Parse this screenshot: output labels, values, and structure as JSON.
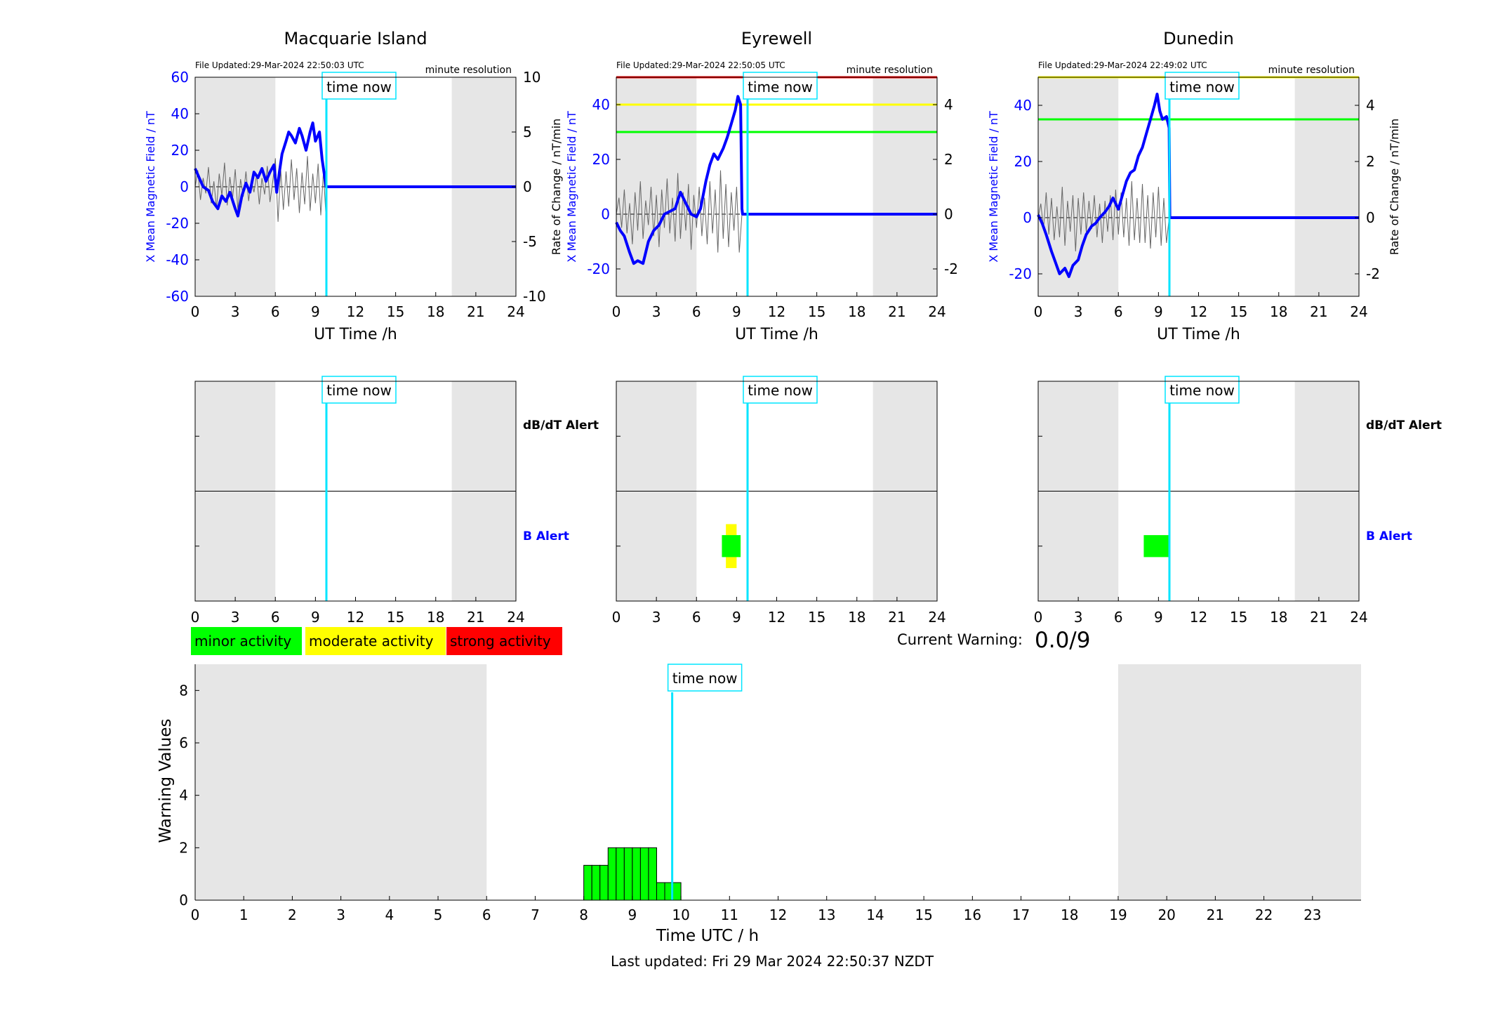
{
  "stations": [
    {
      "name": "Macquarie Island",
      "file_updated": "File Updated:29-Mar-2024 22:50:03 UTC",
      "resolution": "minute resolution",
      "left_ylabel": "X Mean Magnetic Field / nT",
      "right_ylabel": "",
      "left_ylim": [
        -60,
        60
      ],
      "left_yticks": [
        -60,
        -40,
        -20,
        0,
        20,
        40,
        60
      ],
      "right_ylim": [
        -10,
        10
      ],
      "right_yticks": [
        -10,
        -5,
        0,
        5,
        10
      ],
      "thresholds": [],
      "show_alert_labels": true,
      "b_alert_boxes": [],
      "field_trace": [
        [
          0,
          10
        ],
        [
          0.3,
          5
        ],
        [
          0.6,
          0
        ],
        [
          1,
          -2
        ],
        [
          1.3,
          -8
        ],
        [
          1.7,
          -12
        ],
        [
          2,
          -5
        ],
        [
          2.3,
          -8
        ],
        [
          2.6,
          -3
        ],
        [
          3,
          -12
        ],
        [
          3.2,
          -16
        ],
        [
          3.5,
          -5
        ],
        [
          3.8,
          2
        ],
        [
          4.1,
          -3
        ],
        [
          4.4,
          8
        ],
        [
          4.7,
          5
        ],
        [
          5,
          10
        ],
        [
          5.3,
          3
        ],
        [
          5.6,
          8
        ],
        [
          5.9,
          12
        ],
        [
          6.1,
          -3
        ],
        [
          6.3,
          8
        ],
        [
          6.5,
          18
        ],
        [
          6.8,
          25
        ],
        [
          7,
          30
        ],
        [
          7.2,
          28
        ],
        [
          7.5,
          24
        ],
        [
          7.8,
          32
        ],
        [
          8,
          28
        ],
        [
          8.3,
          20
        ],
        [
          8.6,
          30
        ],
        [
          8.8,
          35
        ],
        [
          9,
          25
        ],
        [
          9.3,
          30
        ],
        [
          9.5,
          15
        ],
        [
          9.7,
          5
        ],
        [
          9.8,
          0
        ],
        [
          24,
          0
        ]
      ],
      "rate_trace": [
        [
          0,
          0
        ],
        [
          0.2,
          1.5
        ],
        [
          0.4,
          -1.2
        ],
        [
          0.6,
          0.8
        ],
        [
          0.8,
          -0.6
        ],
        [
          1,
          1.8
        ],
        [
          1.2,
          -1.5
        ],
        [
          1.4,
          0.5
        ],
        [
          1.6,
          -2
        ],
        [
          1.8,
          1.2
        ],
        [
          2,
          -0.8
        ],
        [
          2.2,
          2.2
        ],
        [
          2.4,
          -1.7
        ],
        [
          2.6,
          0.9
        ],
        [
          2.8,
          -1.1
        ],
        [
          3,
          1.6
        ],
        [
          3.2,
          -2.2
        ],
        [
          3.4,
          0.7
        ],
        [
          3.6,
          -0.9
        ],
        [
          3.8,
          1.4
        ],
        [
          4,
          -1.3
        ],
        [
          4.2,
          0.6
        ],
        [
          4.4,
          -0.5
        ],
        [
          4.6,
          1.1
        ],
        [
          4.8,
          -1.6
        ],
        [
          5,
          0.8
        ],
        [
          5.2,
          -0.7
        ],
        [
          5.4,
          1.9
        ],
        [
          5.6,
          -1.4
        ],
        [
          5.8,
          0.4
        ],
        [
          6,
          2.6
        ],
        [
          6.2,
          -3.2
        ],
        [
          6.4,
          1.6
        ],
        [
          6.6,
          -2.1
        ],
        [
          6.8,
          1.4
        ],
        [
          7,
          -1.8
        ],
        [
          7.2,
          2.5
        ],
        [
          7.4,
          -1.2
        ],
        [
          7.6,
          1.7
        ],
        [
          7.8,
          -2.4
        ],
        [
          8,
          1.3
        ],
        [
          8.2,
          -1.6
        ],
        [
          8.4,
          2.8
        ],
        [
          8.6,
          -2.2
        ],
        [
          8.8,
          1.2
        ],
        [
          9,
          -1.5
        ],
        [
          9.2,
          2.1
        ],
        [
          9.4,
          -2.6
        ],
        [
          9.6,
          1.4
        ],
        [
          9.8,
          -3
        ]
      ],
      "night_bands": [
        [
          0,
          6
        ],
        [
          19.2,
          24
        ]
      ]
    },
    {
      "name": "Eyrewell",
      "file_updated": "File Updated:29-Mar-2024 22:50:05 UTC",
      "resolution": "minute resolution",
      "left_ylabel": "X Mean Magnetic Field / nT",
      "right_ylabel": "Rate of Change / nT/min",
      "left_ylim": [
        -30,
        50
      ],
      "left_yticks": [
        -20,
        0,
        20,
        40
      ],
      "right_ylim": [
        -3,
        5
      ],
      "right_yticks": [
        -2,
        0,
        2,
        4
      ],
      "thresholds": [
        {
          "value": 50,
          "color": "#ff0000"
        },
        {
          "value": 40,
          "color": "#ffff00"
        },
        {
          "value": 30,
          "color": "#00ff00"
        }
      ],
      "show_alert_labels": false,
      "b_alert_boxes": [
        {
          "x0": 8.2,
          "x1": 9.0,
          "bottom": 0.3,
          "top": 0.7,
          "color": "#ffff00"
        },
        {
          "x0": 7.9,
          "x1": 9.3,
          "bottom": 0.4,
          "top": 0.6,
          "color": "#00ff00"
        }
      ],
      "field_trace": [
        [
          0,
          -3
        ],
        [
          0.3,
          -6
        ],
        [
          0.6,
          -8
        ],
        [
          1,
          -14
        ],
        [
          1.3,
          -18
        ],
        [
          1.6,
          -17
        ],
        [
          2,
          -18
        ],
        [
          2.4,
          -10
        ],
        [
          2.8,
          -6
        ],
        [
          3.2,
          -4
        ],
        [
          3.6,
          0
        ],
        [
          4,
          1
        ],
        [
          4.4,
          2
        ],
        [
          4.8,
          8
        ],
        [
          5.2,
          4
        ],
        [
          5.6,
          0
        ],
        [
          6,
          -1
        ],
        [
          6.3,
          2
        ],
        [
          6.7,
          12
        ],
        [
          7,
          18
        ],
        [
          7.3,
          22
        ],
        [
          7.6,
          20
        ],
        [
          8,
          24
        ],
        [
          8.3,
          28
        ],
        [
          8.6,
          33
        ],
        [
          8.9,
          38
        ],
        [
          9.1,
          43
        ],
        [
          9.3,
          40
        ],
        [
          9.4,
          2
        ],
        [
          9.45,
          0
        ],
        [
          24,
          0
        ]
      ],
      "rate_trace": [
        [
          0,
          0
        ],
        [
          0.2,
          0.6
        ],
        [
          0.4,
          -0.5
        ],
        [
          0.6,
          0.9
        ],
        [
          0.8,
          -0.7
        ],
        [
          1,
          0.4
        ],
        [
          1.2,
          -1.1
        ],
        [
          1.4,
          0.8
        ],
        [
          1.6,
          -0.6
        ],
        [
          1.8,
          1.2
        ],
        [
          2,
          -0.9
        ],
        [
          2.2,
          0.5
        ],
        [
          2.4,
          -0.4
        ],
        [
          2.6,
          1
        ],
        [
          2.8,
          -0.8
        ],
        [
          3,
          0.7
        ],
        [
          3.2,
          -1.2
        ],
        [
          3.4,
          0.9
        ],
        [
          3.6,
          -0.5
        ],
        [
          3.8,
          1.3
        ],
        [
          4,
          -0.7
        ],
        [
          4.2,
          0.6
        ],
        [
          4.4,
          -1
        ],
        [
          4.6,
          1.5
        ],
        [
          4.8,
          -0.9
        ],
        [
          5,
          0.8
        ],
        [
          5.2,
          -0.6
        ],
        [
          5.4,
          1.1
        ],
        [
          5.6,
          -1.3
        ],
        [
          5.8,
          0.7
        ],
        [
          6,
          -0.5
        ],
        [
          6.2,
          1
        ],
        [
          6.4,
          -0.8
        ],
        [
          6.6,
          0.6
        ],
        [
          6.8,
          -1.1
        ],
        [
          7,
          1.2
        ],
        [
          7.2,
          -0.7
        ],
        [
          7.4,
          0.9
        ],
        [
          7.6,
          -1.4
        ],
        [
          7.8,
          1.6
        ],
        [
          8,
          -0.9
        ],
        [
          8.2,
          1.1
        ],
        [
          8.4,
          -1.2
        ],
        [
          8.6,
          0.8
        ],
        [
          8.8,
          -0.6
        ],
        [
          9,
          1
        ],
        [
          9.2,
          -1.4
        ],
        [
          9.4,
          0
        ]
      ],
      "night_bands": [
        [
          0,
          6
        ],
        [
          19.2,
          24
        ]
      ]
    },
    {
      "name": "Dunedin",
      "file_updated": "File Updated:29-Mar-2024 22:49:02 UTC",
      "resolution": "minute resolution",
      "left_ylabel": "X Mean Magnetic Field / nT",
      "right_ylabel": "Rate of Change / nT/min",
      "left_ylim": [
        -28,
        50
      ],
      "left_yticks": [
        -20,
        0,
        20,
        40
      ],
      "right_ylim": [
        -2.8,
        5
      ],
      "right_yticks": [
        -2,
        0,
        2,
        4
      ],
      "thresholds": [
        {
          "value": 50,
          "color": "#ffff00"
        },
        {
          "value": 35,
          "color": "#00ff00"
        }
      ],
      "show_alert_labels": true,
      "b_alert_boxes": [
        {
          "x0": 7.9,
          "x1": 9.8,
          "bottom": 0.4,
          "top": 0.6,
          "color": "#00ff00"
        }
      ],
      "field_trace": [
        [
          0,
          1
        ],
        [
          0.3,
          -2
        ],
        [
          0.6,
          -6
        ],
        [
          1,
          -12
        ],
        [
          1.3,
          -16
        ],
        [
          1.6,
          -20
        ],
        [
          2,
          -18
        ],
        [
          2.3,
          -21
        ],
        [
          2.6,
          -17
        ],
        [
          3,
          -15
        ],
        [
          3.3,
          -10
        ],
        [
          3.6,
          -6
        ],
        [
          4,
          -3
        ],
        [
          4.3,
          -2
        ],
        [
          4.6,
          0
        ],
        [
          5,
          2
        ],
        [
          5.3,
          4
        ],
        [
          5.6,
          7
        ],
        [
          6,
          3
        ],
        [
          6.3,
          8
        ],
        [
          6.6,
          13
        ],
        [
          6.9,
          16
        ],
        [
          7.2,
          17
        ],
        [
          7.5,
          22
        ],
        [
          7.8,
          25
        ],
        [
          8.1,
          30
        ],
        [
          8.4,
          35
        ],
        [
          8.7,
          40
        ],
        [
          8.9,
          44
        ],
        [
          9.1,
          38
        ],
        [
          9.3,
          35
        ],
        [
          9.6,
          36
        ],
        [
          9.8,
          32
        ],
        [
          9.85,
          0
        ],
        [
          24,
          0
        ]
      ],
      "rate_trace": [
        [
          0,
          0
        ],
        [
          0.2,
          0.5
        ],
        [
          0.4,
          -0.4
        ],
        [
          0.6,
          0.9
        ],
        [
          0.8,
          -0.6
        ],
        [
          1,
          0.7
        ],
        [
          1.2,
          -0.8
        ],
        [
          1.4,
          0.4
        ],
        [
          1.6,
          -0.7
        ],
        [
          1.8,
          1.1
        ],
        [
          2,
          -1
        ],
        [
          2.2,
          0.6
        ],
        [
          2.4,
          -0.5
        ],
        [
          2.6,
          0.8
        ],
        [
          2.8,
          -1.2
        ],
        [
          3,
          0.7
        ],
        [
          3.2,
          -0.6
        ],
        [
          3.4,
          0.9
        ],
        [
          3.6,
          -0.5
        ],
        [
          3.8,
          0.6
        ],
        [
          4,
          -0.4
        ],
        [
          4.2,
          0.8
        ],
        [
          4.4,
          -0.7
        ],
        [
          4.6,
          0.5
        ],
        [
          4.8,
          -0.9
        ],
        [
          5,
          0.6
        ],
        [
          5.2,
          -0.5
        ],
        [
          5.4,
          0.8
        ],
        [
          5.6,
          -0.8
        ],
        [
          5.8,
          1
        ],
        [
          6,
          -0.6
        ],
        [
          6.2,
          0.9
        ],
        [
          6.4,
          -0.7
        ],
        [
          6.6,
          0.7
        ],
        [
          6.8,
          -1
        ],
        [
          7,
          1.3
        ],
        [
          7.2,
          -0.8
        ],
        [
          7.4,
          0.7
        ],
        [
          7.6,
          -0.9
        ],
        [
          7.8,
          1.2
        ],
        [
          8,
          -0.9
        ],
        [
          8.2,
          0.8
        ],
        [
          8.4,
          -1.1
        ],
        [
          8.6,
          0.9
        ],
        [
          8.8,
          -0.7
        ],
        [
          9,
          1.1
        ],
        [
          9.2,
          -1
        ],
        [
          9.4,
          0.7
        ],
        [
          9.6,
          -0.9
        ],
        [
          9.8,
          0
        ]
      ],
      "night_bands": [
        [
          0,
          6
        ],
        [
          19.2,
          24
        ]
      ]
    }
  ],
  "labels": {
    "x_ticks_24": [
      0,
      3,
      6,
      9,
      12,
      15,
      18,
      21,
      24
    ],
    "ut_xlabel": "UT Time /h",
    "time_now": "time now",
    "time_now_hour": 9.82,
    "dbdt_alert": "dB/dT Alert",
    "b_alert": "B Alert"
  },
  "legend": [
    {
      "label": "minor activity",
      "color": "#00ff00"
    },
    {
      "label": "moderate activity",
      "color": "#ffff00"
    },
    {
      "label": "strong activity",
      "color": "#ff0000"
    }
  ],
  "current_warning": {
    "label": "Current Warning:",
    "value": "0.0/9"
  },
  "chart_data": {
    "type": "bar",
    "x": [
      8,
      8.5,
      9,
      9.5
    ],
    "values": [
      1.33,
      2,
      2,
      0.67
    ],
    "bar_step_hours": [
      0.5,
      0.5,
      0.5,
      0.5
    ],
    "xlabel": "Time UTC / h",
    "ylabel": "Warning Values",
    "xlim": [
      0,
      24
    ],
    "ylim": [
      0,
      9
    ],
    "x_ticks": [
      0,
      1,
      2,
      3,
      4,
      5,
      6,
      7,
      8,
      9,
      10,
      11,
      12,
      13,
      14,
      15,
      16,
      17,
      18,
      19,
      20,
      21,
      22,
      23
    ],
    "y_ticks": [
      0,
      2,
      4,
      6,
      8
    ],
    "night_bands": [
      [
        0,
        6
      ],
      [
        19,
        24
      ]
    ],
    "bar_color": "#00ff00"
  },
  "footer": "Last updated: Fri 29 Mar 2024 22:50:37 NZDT"
}
